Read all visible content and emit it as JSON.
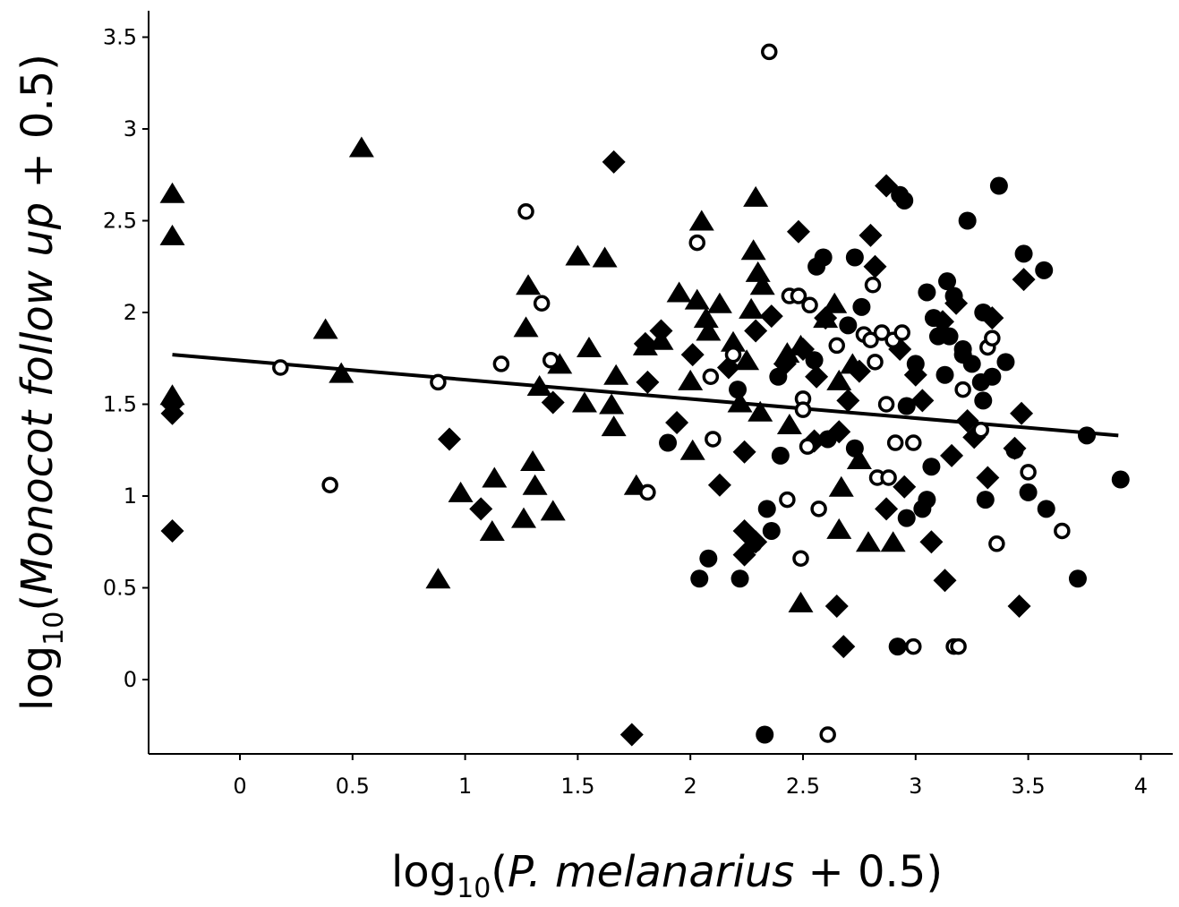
{
  "chart_data": {
    "type": "scatter",
    "xlabel": {
      "prefix": "log",
      "sub": "10",
      "open": "(",
      "italic": "P. melanarius",
      "rest": " + 0.5)"
    },
    "ylabel": {
      "prefix": "log",
      "sub": "10",
      "open": "(",
      "italic": "Monocot follow up",
      "rest": " + 0.5)"
    },
    "xlim": [
      -0.4,
      4.15
    ],
    "ylim": [
      -0.4,
      3.65
    ],
    "xticks": [
      0,
      0.5,
      1,
      1.5,
      2,
      2.5,
      3,
      3.5,
      4
    ],
    "xtick_labels": [
      "0",
      "0.5",
      "1",
      "1.5",
      "2",
      "2.5",
      "3",
      "3.5",
      "4"
    ],
    "yticks": [
      0,
      0.5,
      1,
      1.5,
      2,
      2.5,
      3,
      3.5
    ],
    "ytick_labels": [
      "0",
      "0.5",
      "1",
      "1.5",
      "2",
      "2.5",
      "3",
      "3.5"
    ],
    "grid": false,
    "trendline": {
      "x": [
        -0.3,
        3.9
      ],
      "y": [
        1.77,
        1.33
      ]
    },
    "series": [
      {
        "marker": "triangle",
        "points": [
          [
            -0.3,
            2.65
          ],
          [
            -0.3,
            2.42
          ],
          [
            -0.3,
            1.55
          ],
          [
            0.38,
            1.91
          ],
          [
            0.45,
            1.67
          ],
          [
            0.54,
            2.9
          ],
          [
            0.88,
            0.55
          ],
          [
            0.98,
            1.02
          ],
          [
            1.13,
            1.1
          ],
          [
            1.12,
            0.81
          ],
          [
            1.27,
            1.92
          ],
          [
            1.28,
            2.15
          ],
          [
            1.26,
            0.88
          ],
          [
            1.3,
            1.19
          ],
          [
            1.31,
            1.06
          ],
          [
            1.33,
            1.6
          ],
          [
            1.39,
            0.92
          ],
          [
            1.42,
            1.72
          ],
          [
            1.5,
            2.31
          ],
          [
            1.53,
            1.51
          ],
          [
            1.55,
            1.81
          ],
          [
            1.62,
            2.3
          ],
          [
            1.65,
            1.5
          ],
          [
            1.66,
            1.38
          ],
          [
            1.67,
            1.66
          ],
          [
            1.76,
            1.06
          ],
          [
            1.8,
            1.82
          ],
          [
            1.87,
            1.85
          ],
          [
            1.95,
            2.11
          ],
          [
            2.0,
            1.63
          ],
          [
            2.01,
            1.25
          ],
          [
            2.03,
            2.07
          ],
          [
            2.05,
            2.5
          ],
          [
            2.07,
            1.97
          ],
          [
            2.08,
            1.9
          ],
          [
            2.13,
            2.05
          ],
          [
            2.19,
            1.84
          ],
          [
            2.22,
            1.51
          ],
          [
            2.25,
            1.74
          ],
          [
            2.27,
            2.02
          ],
          [
            2.28,
            2.34
          ],
          [
            2.29,
            2.63
          ],
          [
            2.3,
            2.22
          ],
          [
            2.32,
            2.15
          ],
          [
            2.31,
            1.46
          ],
          [
            2.43,
            1.78
          ],
          [
            2.44,
            1.39
          ],
          [
            2.49,
            1.82
          ],
          [
            2.49,
            0.42
          ],
          [
            2.6,
            1.97
          ],
          [
            2.64,
            2.05
          ],
          [
            2.66,
            1.63
          ],
          [
            2.66,
            0.82
          ],
          [
            2.67,
            1.05
          ],
          [
            2.72,
            1.72
          ],
          [
            2.75,
            1.2
          ],
          [
            2.79,
            0.75
          ],
          [
            2.9,
            0.75
          ]
        ]
      },
      {
        "marker": "diamond",
        "points": [
          [
            -0.3,
            1.5
          ],
          [
            -0.3,
            1.45
          ],
          [
            -0.3,
            0.81
          ],
          [
            0.93,
            1.31
          ],
          [
            1.07,
            0.93
          ],
          [
            1.39,
            1.51
          ],
          [
            1.66,
            2.82
          ],
          [
            1.74,
            -0.3
          ],
          [
            1.8,
            1.83
          ],
          [
            1.81,
            1.62
          ],
          [
            1.87,
            1.9
          ],
          [
            1.94,
            1.4
          ],
          [
            2.01,
            1.77
          ],
          [
            2.13,
            1.06
          ],
          [
            2.17,
            1.7
          ],
          [
            2.24,
            1.24
          ],
          [
            2.24,
            0.68
          ],
          [
            2.24,
            0.81
          ],
          [
            2.29,
            0.75
          ],
          [
            2.29,
            1.9
          ],
          [
            2.36,
            1.98
          ],
          [
            2.42,
            1.72
          ],
          [
            2.48,
            2.44
          ],
          [
            2.5,
            1.8
          ],
          [
            2.55,
            1.3
          ],
          [
            2.56,
            1.65
          ],
          [
            2.6,
            1.97
          ],
          [
            2.65,
            0.4
          ],
          [
            2.66,
            1.35
          ],
          [
            2.68,
            0.18
          ],
          [
            2.7,
            1.52
          ],
          [
            2.75,
            1.68
          ],
          [
            2.8,
            2.42
          ],
          [
            2.82,
            2.25
          ],
          [
            2.87,
            2.69
          ],
          [
            2.87,
            0.93
          ],
          [
            2.93,
            1.8
          ],
          [
            2.95,
            1.05
          ],
          [
            3.0,
            1.66
          ],
          [
            3.03,
            1.52
          ],
          [
            3.07,
            0.75
          ],
          [
            3.12,
            1.95
          ],
          [
            3.13,
            0.54
          ],
          [
            3.16,
            1.22
          ],
          [
            3.18,
            2.05
          ],
          [
            3.23,
            1.41
          ],
          [
            3.26,
            1.32
          ],
          [
            3.32,
            1.1
          ],
          [
            3.34,
            1.97
          ],
          [
            3.44,
            1.26
          ],
          [
            3.46,
            0.4
          ],
          [
            3.47,
            1.45
          ],
          [
            3.48,
            2.18
          ]
        ]
      },
      {
        "marker": "filled-circle",
        "points": [
          [
            1.9,
            1.29
          ],
          [
            2.04,
            0.55
          ],
          [
            2.08,
            0.66
          ],
          [
            2.21,
            1.58
          ],
          [
            2.22,
            0.55
          ],
          [
            2.28,
            0.74
          ],
          [
            2.33,
            -0.3
          ],
          [
            2.34,
            0.93
          ],
          [
            2.36,
            0.81
          ],
          [
            2.39,
            1.65
          ],
          [
            2.4,
            1.22
          ],
          [
            2.55,
            1.74
          ],
          [
            2.56,
            2.25
          ],
          [
            2.59,
            2.3
          ],
          [
            2.61,
            1.31
          ],
          [
            2.7,
            1.93
          ],
          [
            2.73,
            2.3
          ],
          [
            2.73,
            1.26
          ],
          [
            2.76,
            2.03
          ],
          [
            2.93,
            2.64
          ],
          [
            2.95,
            2.61
          ],
          [
            2.92,
            0.18
          ],
          [
            2.96,
            1.49
          ],
          [
            2.96,
            0.88
          ],
          [
            3.0,
            1.72
          ],
          [
            3.03,
            0.93
          ],
          [
            3.05,
            0.98
          ],
          [
            3.05,
            2.11
          ],
          [
            3.07,
            1.16
          ],
          [
            3.08,
            1.97
          ],
          [
            3.1,
            1.87
          ],
          [
            3.13,
            1.66
          ],
          [
            3.14,
            2.17
          ],
          [
            3.15,
            1.87
          ],
          [
            3.17,
            2.09
          ],
          [
            3.21,
            1.8
          ],
          [
            3.21,
            1.77
          ],
          [
            3.23,
            2.5
          ],
          [
            3.25,
            1.72
          ],
          [
            3.29,
            1.62
          ],
          [
            3.3,
            1.52
          ],
          [
            3.3,
            2.0
          ],
          [
            3.31,
            0.98
          ],
          [
            3.34,
            1.65
          ],
          [
            3.37,
            2.69
          ],
          [
            3.4,
            1.73
          ],
          [
            3.44,
            1.25
          ],
          [
            3.48,
            2.32
          ],
          [
            3.5,
            1.02
          ],
          [
            3.57,
            2.23
          ],
          [
            3.58,
            0.93
          ],
          [
            3.72,
            0.55
          ],
          [
            3.76,
            1.33
          ],
          [
            3.91,
            1.09
          ]
        ]
      },
      {
        "marker": "open-circle",
        "points": [
          [
            0.18,
            1.7
          ],
          [
            0.4,
            1.06
          ],
          [
            0.88,
            1.62
          ],
          [
            1.16,
            1.72
          ],
          [
            1.27,
            2.55
          ],
          [
            1.34,
            2.05
          ],
          [
            1.38,
            1.74
          ],
          [
            1.81,
            1.02
          ],
          [
            2.03,
            2.38
          ],
          [
            2.09,
            1.65
          ],
          [
            2.1,
            1.31
          ],
          [
            2.19,
            1.77
          ],
          [
            2.35,
            3.42
          ],
          [
            2.43,
            0.98
          ],
          [
            2.44,
            2.09
          ],
          [
            2.48,
            2.09
          ],
          [
            2.49,
            0.66
          ],
          [
            2.5,
            1.53
          ],
          [
            2.5,
            1.47
          ],
          [
            2.52,
            1.27
          ],
          [
            2.53,
            2.04
          ],
          [
            2.57,
            0.93
          ],
          [
            2.61,
            -0.3
          ],
          [
            2.65,
            1.82
          ],
          [
            2.77,
            1.88
          ],
          [
            2.8,
            1.85
          ],
          [
            2.81,
            2.15
          ],
          [
            2.82,
            1.73
          ],
          [
            2.83,
            1.1
          ],
          [
            2.85,
            1.89
          ],
          [
            2.87,
            1.5
          ],
          [
            2.88,
            1.1
          ],
          [
            2.9,
            1.85
          ],
          [
            2.91,
            1.29
          ],
          [
            2.94,
            1.89
          ],
          [
            2.99,
            0.18
          ],
          [
            2.99,
            1.29
          ],
          [
            3.17,
            0.18
          ],
          [
            3.19,
            0.18
          ],
          [
            3.21,
            1.58
          ],
          [
            3.29,
            1.36
          ],
          [
            3.32,
            1.81
          ],
          [
            3.34,
            1.86
          ],
          [
            3.36,
            0.74
          ],
          [
            3.5,
            1.13
          ],
          [
            3.65,
            0.81
          ]
        ]
      }
    ]
  }
}
